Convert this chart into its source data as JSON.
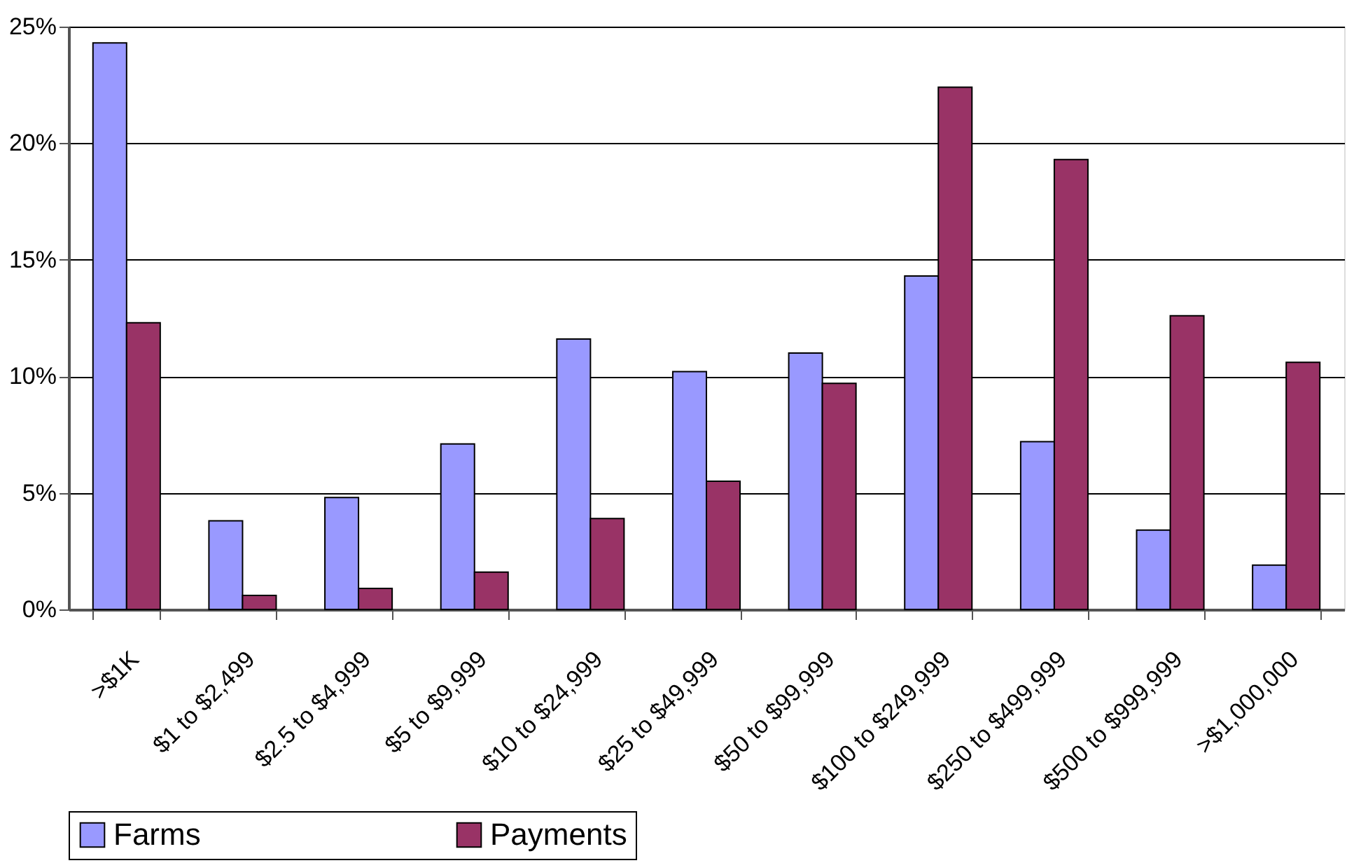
{
  "chart_data": {
    "type": "bar",
    "categories": [
      ">$1K",
      "$1 to $2,499",
      "$2.5 to $4,999",
      "$5 to $9,999",
      "$10 to $24,999",
      "$25 to $49,999",
      "$50 to $99,999",
      "$100 to $249,999",
      "$250 to $499,999",
      "$500 to $999,999",
      ">$1,000,000"
    ],
    "series": [
      {
        "name": "Farms",
        "color": "#9999ff",
        "values": [
          24.3,
          3.8,
          4.8,
          7.1,
          11.6,
          10.2,
          11.0,
          14.3,
          7.2,
          3.4,
          1.9
        ]
      },
      {
        "name": "Payments",
        "color": "#993366",
        "values": [
          12.3,
          0.6,
          0.9,
          1.6,
          3.9,
          5.5,
          9.7,
          22.4,
          19.3,
          12.6,
          10.6
        ]
      }
    ],
    "ylim": [
      0,
      25
    ],
    "yticks": [
      {
        "value": 0,
        "label": "0%"
      },
      {
        "value": 5,
        "label": "5%"
      },
      {
        "value": 10,
        "label": "10%"
      },
      {
        "value": 15,
        "label": "15%"
      },
      {
        "value": 20,
        "label": "20%"
      },
      {
        "value": 25,
        "label": "25%"
      }
    ],
    "grid": "y",
    "legend": "bottom"
  }
}
